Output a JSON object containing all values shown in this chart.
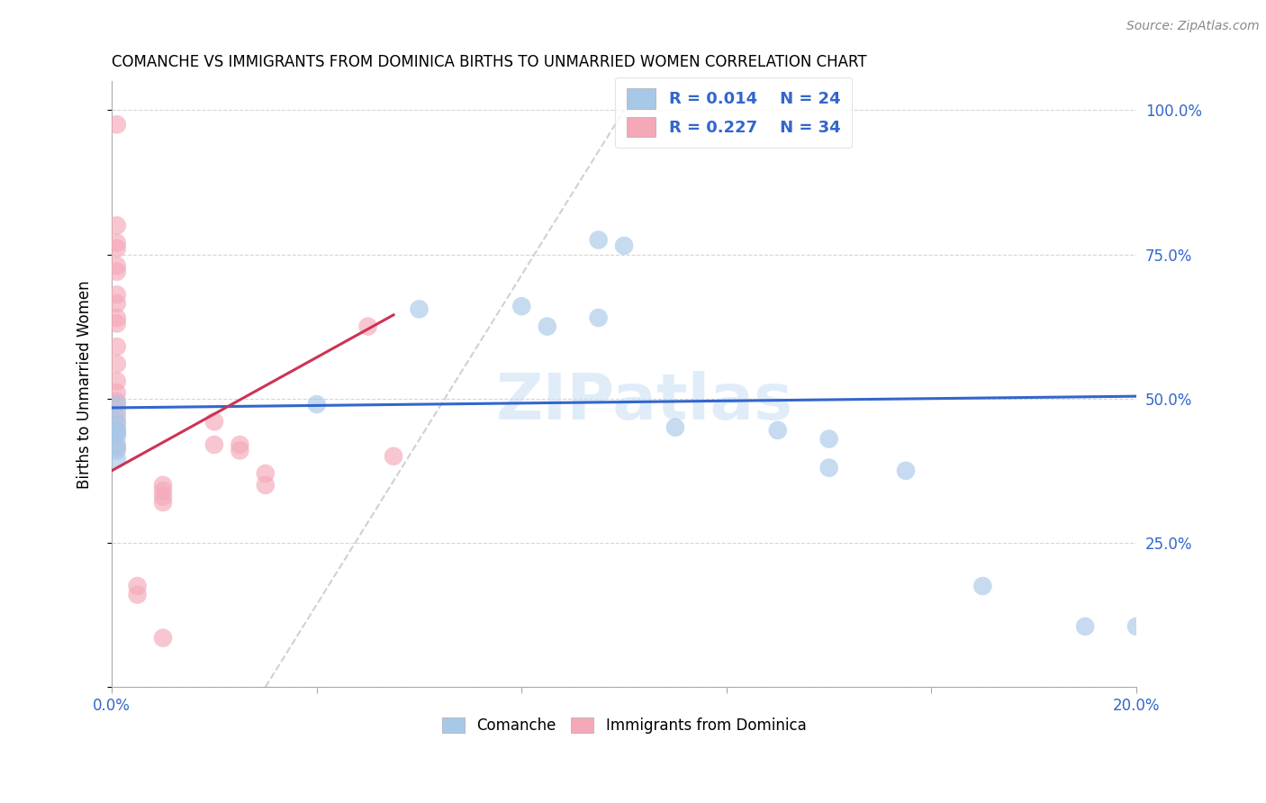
{
  "title": "COMANCHE VS IMMIGRANTS FROM DOMINICA BIRTHS TO UNMARRIED WOMEN CORRELATION CHART",
  "source": "Source: ZipAtlas.com",
  "ylabel": "Births to Unmarried Women",
  "xlim": [
    0.0,
    0.2
  ],
  "ylim": [
    0.0,
    1.05
  ],
  "ytick_values": [
    0.0,
    0.25,
    0.5,
    0.75,
    1.0
  ],
  "xtick_values": [
    0.0,
    0.04,
    0.08,
    0.12,
    0.16,
    0.2
  ],
  "comanche_color": "#a8c8e8",
  "dominica_color": "#f4a8b8",
  "trendline_comanche_color": "#3366cc",
  "trendline_dominica_color": "#cc3355",
  "diagonal_color": "#cccccc",
  "watermark": "ZIPatlas",
  "comanche_x": [
    0.001,
    0.001,
    0.001,
    0.001,
    0.001,
    0.001,
    0.001,
    0.001,
    0.001,
    0.04,
    0.06,
    0.08,
    0.085,
    0.095,
    0.1,
    0.095,
    0.11,
    0.13,
    0.14,
    0.14,
    0.155,
    0.17,
    0.19,
    0.2
  ],
  "comanche_y": [
    0.49,
    0.47,
    0.455,
    0.445,
    0.44,
    0.435,
    0.42,
    0.41,
    0.395,
    0.49,
    0.655,
    0.66,
    0.625,
    0.775,
    0.765,
    0.64,
    0.45,
    0.445,
    0.43,
    0.38,
    0.375,
    0.175,
    0.105,
    0.105
  ],
  "dominica_x": [
    0.001,
    0.001,
    0.001,
    0.001,
    0.001,
    0.001,
    0.001,
    0.001,
    0.001,
    0.001,
    0.001,
    0.001,
    0.001,
    0.001,
    0.001,
    0.001,
    0.001,
    0.001,
    0.001,
    0.02,
    0.02,
    0.025,
    0.025,
    0.03,
    0.03,
    0.05,
    0.055,
    0.01,
    0.01,
    0.01,
    0.01,
    0.01,
    0.005,
    0.005
  ],
  "dominica_y": [
    0.975,
    0.8,
    0.77,
    0.76,
    0.73,
    0.72,
    0.68,
    0.665,
    0.64,
    0.63,
    0.59,
    0.56,
    0.53,
    0.51,
    0.495,
    0.48,
    0.46,
    0.445,
    0.415,
    0.46,
    0.42,
    0.42,
    0.41,
    0.37,
    0.35,
    0.625,
    0.4,
    0.35,
    0.34,
    0.33,
    0.32,
    0.085,
    0.175,
    0.16
  ]
}
